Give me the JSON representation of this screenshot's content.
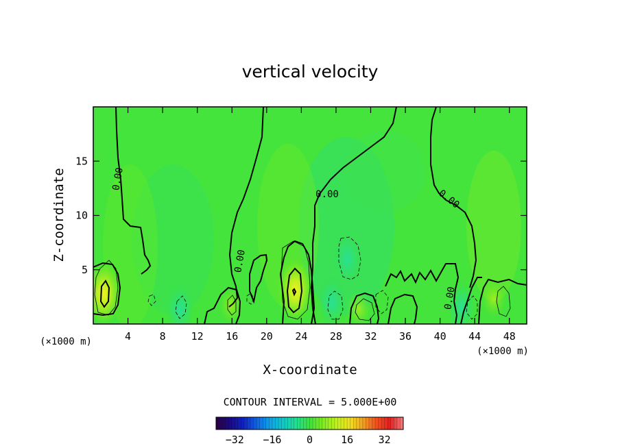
{
  "chart_data": {
    "type": "heatmap",
    "title": "vertical velocity",
    "xlabel": "X-coordinate",
    "ylabel": "Z-coordinate",
    "x_unit_label": "(×1000 m)",
    "xlim": [
      0,
      50
    ],
    "ylim": [
      0,
      20
    ],
    "x_ticks": [
      4,
      8,
      12,
      16,
      20,
      24,
      28,
      32,
      36,
      40,
      44,
      48
    ],
    "y_ticks": [
      5,
      10,
      15
    ],
    "contour_interval_text": "CONTOUR INTERVAL = 5.000E+00",
    "contour_label": "0.00",
    "colorbar": {
      "range": [
        -40,
        40
      ],
      "ticks": [
        -32,
        -16,
        0,
        16,
        32
      ],
      "colors": [
        "#2a0040",
        "#1a0a80",
        "#1020c0",
        "#1060e0",
        "#10a0e8",
        "#10c8c8",
        "#20e090",
        "#40e040",
        "#80ec20",
        "#c0f020",
        "#f0e020",
        "#f0a020",
        "#f05020",
        "#e02020",
        "#f08080"
      ]
    },
    "updrafts": [
      {
        "x": 1.2,
        "z": 2.8,
        "value": 12
      },
      {
        "x": 15.9,
        "z": 1.7,
        "value": 6
      },
      {
        "x": 23.3,
        "z": 3.1,
        "value": 14
      },
      {
        "x": 30.6,
        "z": 1.4,
        "value": 8
      },
      {
        "x": 46.2,
        "z": 2.3,
        "value": 5
      }
    ],
    "downdrafts": [
      {
        "x": 29.3,
        "z": 6.0,
        "value": -5
      },
      {
        "x": 27.5,
        "z": 2.0,
        "value": -5
      },
      {
        "x": 10.0,
        "z": 1.3,
        "value": -5
      },
      {
        "x": 42.5,
        "z": 1.5,
        "value": -4
      }
    ],
    "background_value": 0
  }
}
